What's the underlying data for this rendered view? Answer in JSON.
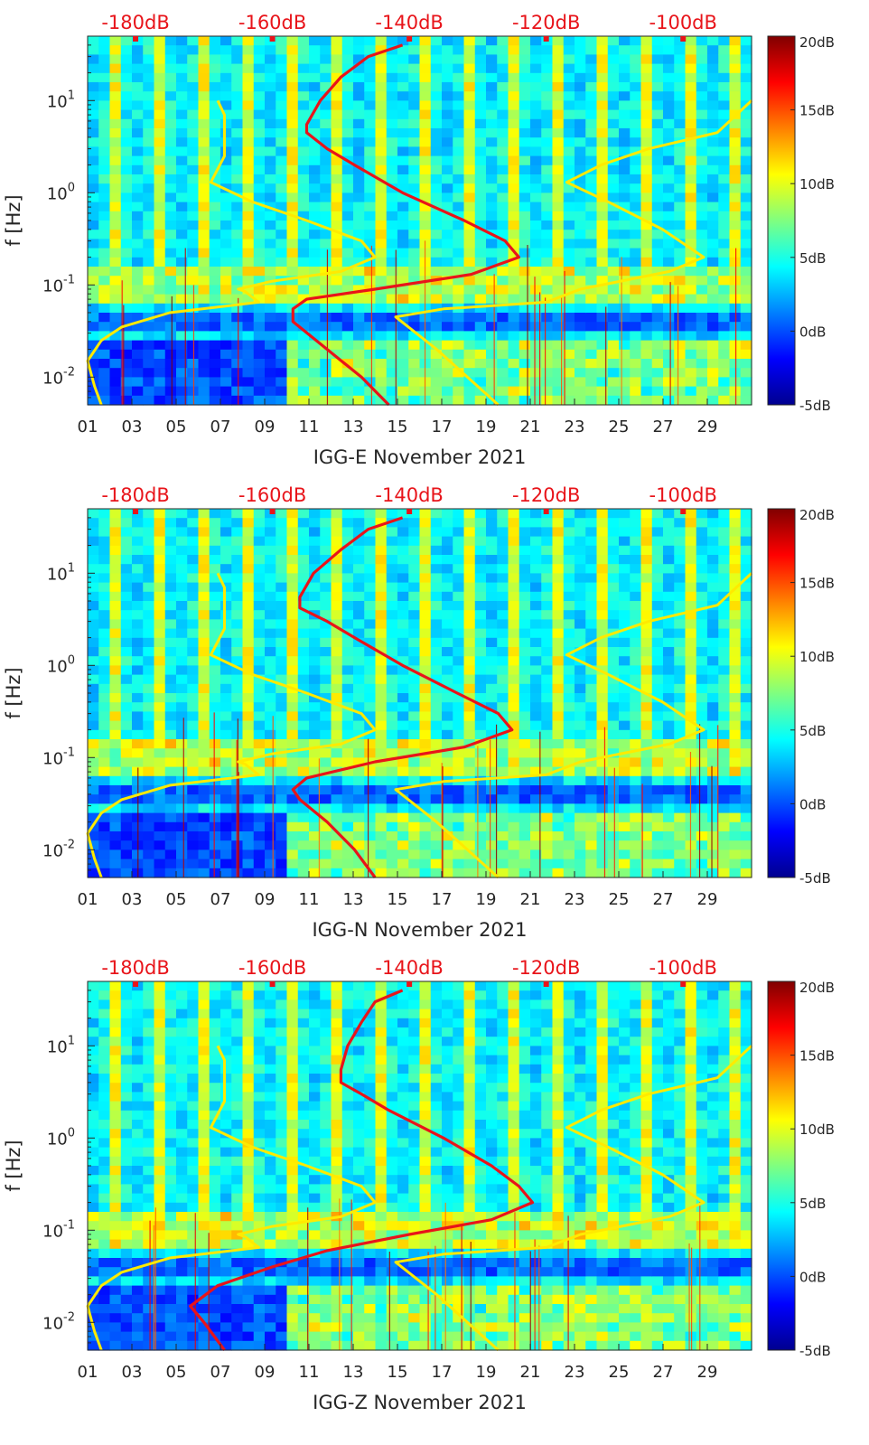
{
  "chart_data": [
    {
      "type": "heatmap",
      "panel": "E",
      "xlabel": "IGG-E November 2021",
      "ylabel": "f [Hz]",
      "x_ticks": [
        "01",
        "03",
        "05",
        "07",
        "09",
        "11",
        "13",
        "15",
        "17",
        "19",
        "21",
        "23",
        "25",
        "27",
        "29"
      ],
      "xlim": [
        1,
        31
      ],
      "y_scale": "log",
      "ylim": [
        0.005,
        50
      ],
      "y_ticks": [
        {
          "base": "10",
          "exp": "-2",
          "value": 0.01
        },
        {
          "base": "10",
          "exp": "-1",
          "value": 0.1
        },
        {
          "base": "10",
          "exp": "0",
          "value": 1
        },
        {
          "base": "10",
          "exp": "1",
          "value": 10
        }
      ],
      "top_axis": {
        "ticks": [
          "-180dB",
          "-160dB",
          "-140dB",
          "-120dB",
          "-100dB"
        ],
        "values": [
          -180,
          -160,
          -140,
          -120,
          -100
        ],
        "range": [
          -187,
          -90
        ]
      },
      "colorbar": {
        "ticks": [
          "20dB",
          "15dB",
          "10dB",
          "5dB",
          "0dB",
          "-5dB"
        ],
        "values": [
          20,
          15,
          10,
          5,
          0,
          -5
        ],
        "range": [
          -5,
          20
        ]
      },
      "series": [
        {
          "color": "#e8141a",
          "axis": "top",
          "points": [
            [
              -141,
              40
            ],
            [
              -146,
              30
            ],
            [
              -150,
              18
            ],
            [
              -153,
              10
            ],
            [
              -155,
              5.5
            ],
            [
              -155,
              4.5
            ],
            [
              -152,
              3
            ],
            [
              -148,
              2
            ],
            [
              -141,
              1
            ],
            [
              -132,
              0.5
            ],
            [
              -126,
              0.3
            ],
            [
              -124,
              0.2
            ],
            [
              -131,
              0.13
            ],
            [
              -145,
              0.09
            ],
            [
              -155,
              0.07
            ],
            [
              -157,
              0.055
            ],
            [
              -157,
              0.04
            ],
            [
              -152,
              0.02
            ],
            [
              -147,
              0.01
            ],
            [
              -143,
              0.005
            ]
          ]
        },
        {
          "color": "#ffea00",
          "axis": "top",
          "points": [
            [
              -168,
              10
            ],
            [
              -167,
              7
            ],
            [
              -167,
              5
            ],
            [
              -167,
              2.5
            ],
            [
              -169,
              1.3
            ],
            [
              -163,
              0.8
            ],
            [
              -155,
              0.5
            ],
            [
              -147,
              0.3
            ],
            [
              -145,
              0.2
            ],
            [
              -150,
              0.14
            ],
            [
              -160,
              0.11
            ],
            [
              -165,
              0.09
            ],
            [
              -164,
              0.085
            ],
            [
              -162,
              0.065
            ],
            [
              -175,
              0.05
            ],
            [
              -182,
              0.035
            ],
            [
              -185,
              0.025
            ],
            [
              -187,
              0.015
            ],
            [
              -186,
              0.008
            ],
            [
              -185,
              0.005
            ]
          ]
        },
        {
          "color": "#ffea00",
          "axis": "top",
          "points": [
            [
              -90,
              10
            ],
            [
              -95,
              4.5
            ],
            [
              -105,
              3
            ],
            [
              -112,
              2
            ],
            [
              -117,
              1.3
            ],
            [
              -111,
              0.8
            ],
            [
              -103,
              0.4
            ],
            [
              -97,
              0.2
            ],
            [
              -102,
              0.14
            ],
            [
              -115,
              0.09
            ],
            [
              -120,
              0.065
            ],
            [
              -135,
              0.055
            ],
            [
              -142,
              0.045
            ],
            [
              -136,
              0.02
            ],
            [
              -127,
              0.005
            ]
          ]
        }
      ]
    },
    {
      "type": "heatmap",
      "panel": "N",
      "xlabel": "IGG-N November 2021",
      "ylabel": "f [Hz]",
      "x_ticks": [
        "01",
        "03",
        "05",
        "07",
        "09",
        "11",
        "13",
        "15",
        "17",
        "19",
        "21",
        "23",
        "25",
        "27",
        "29"
      ],
      "xlim": [
        1,
        31
      ],
      "y_scale": "log",
      "ylim": [
        0.005,
        50
      ],
      "y_ticks": [
        {
          "base": "10",
          "exp": "-2",
          "value": 0.01
        },
        {
          "base": "10",
          "exp": "-1",
          "value": 0.1
        },
        {
          "base": "10",
          "exp": "0",
          "value": 1
        },
        {
          "base": "10",
          "exp": "1",
          "value": 10
        }
      ],
      "top_axis": {
        "ticks": [
          "-180dB",
          "-160dB",
          "-140dB",
          "-120dB",
          "-100dB"
        ],
        "values": [
          -180,
          -160,
          -140,
          -120,
          -100
        ],
        "range": [
          -187,
          -90
        ]
      },
      "colorbar": {
        "ticks": [
          "20dB",
          "15dB",
          "10dB",
          "5dB",
          "0dB",
          "-5dB"
        ],
        "values": [
          20,
          15,
          10,
          5,
          0,
          -5
        ],
        "range": [
          -5,
          20
        ]
      },
      "series": [
        {
          "color": "#e8141a",
          "axis": "top",
          "points": [
            [
              -141,
              40
            ],
            [
              -146,
              30
            ],
            [
              -150,
              18
            ],
            [
              -154,
              10
            ],
            [
              -156,
              5.5
            ],
            [
              -156,
              4.2
            ],
            [
              -152,
              3
            ],
            [
              -148,
              2
            ],
            [
              -141,
              1
            ],
            [
              -133,
              0.5
            ],
            [
              -127,
              0.3
            ],
            [
              -125,
              0.2
            ],
            [
              -132,
              0.13
            ],
            [
              -145,
              0.09
            ],
            [
              -155,
              0.06
            ],
            [
              -157,
              0.045
            ],
            [
              -156,
              0.035
            ],
            [
              -152,
              0.02
            ],
            [
              -148,
              0.01
            ],
            [
              -145,
              0.005
            ]
          ]
        },
        {
          "color": "#ffea00",
          "axis": "top",
          "points": [
            [
              -168,
              10
            ],
            [
              -167,
              7
            ],
            [
              -167,
              5
            ],
            [
              -167,
              2.5
            ],
            [
              -169,
              1.3
            ],
            [
              -163,
              0.8
            ],
            [
              -155,
              0.5
            ],
            [
              -147,
              0.3
            ],
            [
              -145,
              0.2
            ],
            [
              -150,
              0.14
            ],
            [
              -160,
              0.11
            ],
            [
              -165,
              0.09
            ],
            [
              -164,
              0.085
            ],
            [
              -162,
              0.065
            ],
            [
              -175,
              0.05
            ],
            [
              -182,
              0.035
            ],
            [
              -185,
              0.025
            ],
            [
              -187,
              0.015
            ],
            [
              -186,
              0.008
            ],
            [
              -185,
              0.005
            ]
          ]
        },
        {
          "color": "#ffea00",
          "axis": "top",
          "points": [
            [
              -90,
              10
            ],
            [
              -95,
              4.5
            ],
            [
              -105,
              3
            ],
            [
              -112,
              2
            ],
            [
              -117,
              1.3
            ],
            [
              -111,
              0.8
            ],
            [
              -103,
              0.4
            ],
            [
              -97,
              0.2
            ],
            [
              -102,
              0.14
            ],
            [
              -115,
              0.09
            ],
            [
              -120,
              0.065
            ],
            [
              -135,
              0.055
            ],
            [
              -142,
              0.045
            ],
            [
              -136,
              0.02
            ],
            [
              -127,
              0.005
            ]
          ]
        }
      ]
    },
    {
      "type": "heatmap",
      "panel": "Z",
      "xlabel": "IGG-Z November 2021",
      "ylabel": "f [Hz]",
      "x_ticks": [
        "01",
        "03",
        "05",
        "07",
        "09",
        "11",
        "13",
        "15",
        "17",
        "19",
        "21",
        "23",
        "25",
        "27",
        "29"
      ],
      "xlim": [
        1,
        31
      ],
      "y_scale": "log",
      "ylim": [
        0.005,
        50
      ],
      "y_ticks": [
        {
          "base": "10",
          "exp": "-2",
          "value": 0.01
        },
        {
          "base": "10",
          "exp": "-1",
          "value": 0.1
        },
        {
          "base": "10",
          "exp": "0",
          "value": 1
        },
        {
          "base": "10",
          "exp": "1",
          "value": 10
        }
      ],
      "top_axis": {
        "ticks": [
          "-180dB",
          "-160dB",
          "-140dB",
          "-120dB",
          "-100dB"
        ],
        "values": [
          -180,
          -160,
          -140,
          -120,
          -100
        ],
        "range": [
          -187,
          -90
        ]
      },
      "colorbar": {
        "ticks": [
          "20dB",
          "15dB",
          "10dB",
          "5dB",
          "0dB",
          "-5dB"
        ],
        "values": [
          20,
          15,
          10,
          5,
          0,
          -5
        ],
        "range": [
          -5,
          20
        ]
      },
      "series": [
        {
          "color": "#e8141a",
          "axis": "top",
          "points": [
            [
              -141,
              40
            ],
            [
              -145,
              30
            ],
            [
              -147,
              18
            ],
            [
              -149,
              10
            ],
            [
              -150,
              5.5
            ],
            [
              -150,
              4
            ],
            [
              -147,
              3
            ],
            [
              -143,
              2
            ],
            [
              -135,
              1
            ],
            [
              -128,
              0.5
            ],
            [
              -124,
              0.3
            ],
            [
              -122,
              0.2
            ],
            [
              -128,
              0.13
            ],
            [
              -140,
              0.09
            ],
            [
              -152,
              0.06
            ],
            [
              -160,
              0.04
            ],
            [
              -168,
              0.025
            ],
            [
              -172,
              0.015
            ],
            [
              -170,
              0.01
            ],
            [
              -167,
              0.005
            ]
          ]
        },
        {
          "color": "#ffea00",
          "axis": "top",
          "points": [
            [
              -168,
              10
            ],
            [
              -167,
              7
            ],
            [
              -167,
              5
            ],
            [
              -167,
              2.5
            ],
            [
              -169,
              1.3
            ],
            [
              -163,
              0.8
            ],
            [
              -155,
              0.5
            ],
            [
              -147,
              0.3
            ],
            [
              -145,
              0.2
            ],
            [
              -150,
              0.14
            ],
            [
              -160,
              0.11
            ],
            [
              -165,
              0.09
            ],
            [
              -164,
              0.085
            ],
            [
              -162,
              0.065
            ],
            [
              -175,
              0.05
            ],
            [
              -182,
              0.035
            ],
            [
              -185,
              0.025
            ],
            [
              -187,
              0.015
            ],
            [
              -186,
              0.008
            ],
            [
              -185,
              0.005
            ]
          ]
        },
        {
          "color": "#ffea00",
          "axis": "top",
          "points": [
            [
              -90,
              10
            ],
            [
              -95,
              4.5
            ],
            [
              -105,
              3
            ],
            [
              -112,
              2
            ],
            [
              -117,
              1.3
            ],
            [
              -111,
              0.8
            ],
            [
              -103,
              0.4
            ],
            [
              -97,
              0.2
            ],
            [
              -102,
              0.14
            ],
            [
              -115,
              0.09
            ],
            [
              -120,
              0.065
            ],
            [
              -135,
              0.055
            ],
            [
              -142,
              0.045
            ],
            [
              -136,
              0.02
            ],
            [
              -127,
              0.005
            ]
          ]
        }
      ]
    }
  ]
}
